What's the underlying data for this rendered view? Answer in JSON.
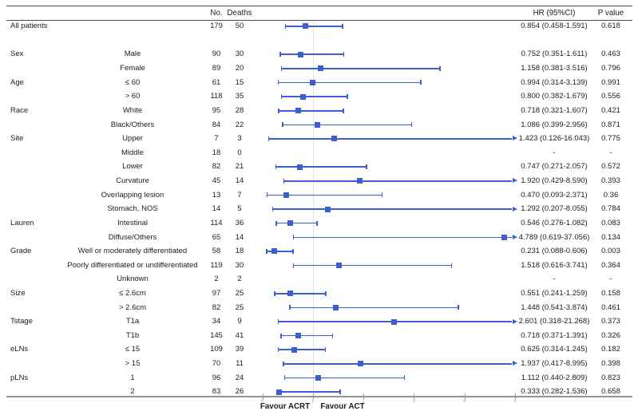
{
  "header": {
    "no": "No.",
    "deaths": "Deaths",
    "hr": "HR (95%CI)",
    "p": "P value"
  },
  "colors": {
    "marker_blue": "#3d5ed1",
    "axis_gray": "#949494",
    "tick_label_gray": "#9a9a9a",
    "refline_gray": "#e3e3e3",
    "text": "#1d1d1d"
  },
  "chart_data": {
    "type": "scatter",
    "subtype": "forest-plot",
    "xlim": [
      0,
      5.3
    ],
    "ticks": [
      0,
      1,
      2,
      3,
      4,
      5
    ],
    "refline_x": 1,
    "xlabel_left": "Favour ACRT",
    "xlabel_right": "Favour ACT",
    "grid": false,
    "rows": [
      {
        "category": "All patients",
        "subgroup": "",
        "no": "179",
        "deaths": "50",
        "hr": 0.854,
        "lo": 0.458,
        "hi": 1.591,
        "hr_text": "0.854 (0.458-1.591)",
        "p": "0.618",
        "arrow": false
      },
      {
        "blank": true
      },
      {
        "category": "Sex",
        "subgroup": "Male",
        "no": "90",
        "deaths": "30",
        "hr": 0.752,
        "lo": 0.351,
        "hi": 1.611,
        "hr_text": "0.752 (0.351-1.611)",
        "p": "0.463",
        "arrow": false
      },
      {
        "category": "",
        "subgroup": "Female",
        "no": "89",
        "deaths": "20",
        "hr": 1.158,
        "lo": 0.381,
        "hi": 3.516,
        "hr_text": "1.158 (0.381-3.516)",
        "p": "0.796",
        "arrow": false
      },
      {
        "category": "Age",
        "subgroup": "≤ 60",
        "no": "61",
        "deaths": "15",
        "hr": 0.994,
        "lo": 0.314,
        "hi": 3.139,
        "hr_text": "0.994 (0.314-3.139)",
        "p": "0.991",
        "arrow": false
      },
      {
        "category": "",
        "subgroup": "> 60",
        "no": "118",
        "deaths": "35",
        "hr": 0.8,
        "lo": 0.382,
        "hi": 1.679,
        "hr_text": "0.800 (0.382-1.679)",
        "p": "0.556",
        "arrow": false
      },
      {
        "category": "Race",
        "subgroup": "White",
        "no": "95",
        "deaths": "28",
        "hr": 0.718,
        "lo": 0.321,
        "hi": 1.607,
        "hr_text": "0.718 (0.321-1.607)",
        "p": "0.421",
        "arrow": false
      },
      {
        "category": "",
        "subgroup": "Black/Others",
        "no": "84",
        "deaths": "22",
        "hr": 1.086,
        "lo": 0.399,
        "hi": 2.956,
        "hr_text": "1.086 (0.399-2.956)",
        "p": "0.871",
        "arrow": false
      },
      {
        "category": "Site",
        "subgroup": "Upper",
        "no": "7",
        "deaths": "3",
        "hr": 1.423,
        "lo": 0.126,
        "hi": 16.043,
        "hr_text": "1.423 (0.126-16.043)",
        "p": "0.775",
        "arrow": true
      },
      {
        "category": "",
        "subgroup": "Middle",
        "no": "18",
        "deaths": "0",
        "hr": null,
        "lo": null,
        "hi": null,
        "hr_text": "-",
        "p": "-",
        "arrow": false
      },
      {
        "category": "",
        "subgroup": "Lower",
        "no": "82",
        "deaths": "21",
        "hr": 0.747,
        "lo": 0.271,
        "hi": 2.057,
        "hr_text": "0.747 (0.271-2.057)",
        "p": "0.572",
        "arrow": false
      },
      {
        "category": "",
        "subgroup": "Curvature",
        "no": "45",
        "deaths": "14",
        "hr": 1.92,
        "lo": 0.429,
        "hi": 8.59,
        "hr_text": "1.920 (0.429-8.590)",
        "p": "0.393",
        "arrow": true
      },
      {
        "category": "",
        "subgroup": "Overlapping lesion",
        "no": "13",
        "deaths": "7",
        "hr": 0.47,
        "lo": 0.093,
        "hi": 2.371,
        "hr_text": "0.470 (0.093-2.371)",
        "p": "0.36",
        "arrow": false
      },
      {
        "category": "",
        "subgroup": "Stomach, NOS",
        "no": "14",
        "deaths": "5",
        "hr": 1.292,
        "lo": 0.207,
        "hi": 8.055,
        "hr_text": "1.292 (0.207-8.055)",
        "p": "0.784",
        "arrow": true
      },
      {
        "category": "Lauren",
        "subgroup": "Intestinal",
        "no": "114",
        "deaths": "36",
        "hr": 0.546,
        "lo": 0.276,
        "hi": 1.082,
        "hr_text": "0.546 (0.276-1.082)",
        "p": "0.083",
        "arrow": false
      },
      {
        "category": "",
        "subgroup": "Diffuse/Others",
        "no": "65",
        "deaths": "14",
        "hr": 4.789,
        "lo": 0.619,
        "hi": 37.056,
        "hr_text": "4.789 (0.619-37.056)",
        "p": "0.134",
        "arrow": true
      },
      {
        "category": "Grade",
        "subgroup": "Well or moderately differentiated",
        "no": "58",
        "deaths": "18",
        "hr": 0.231,
        "lo": 0.088,
        "hi": 0.606,
        "hr_text": "0.231 (0.088-0.606)",
        "p": "0.003",
        "arrow": false
      },
      {
        "category": "",
        "subgroup": "Poorly differentiated or undifferentiated",
        "no": "119",
        "deaths": "30",
        "hr": 1.518,
        "lo": 0.616,
        "hi": 3.741,
        "hr_text": "1.518 (0.616-3.741)",
        "p": "0.364",
        "arrow": false
      },
      {
        "category": "",
        "subgroup": "Unknown",
        "no": "2",
        "deaths": "2",
        "hr": null,
        "lo": null,
        "hi": null,
        "hr_text": "-",
        "p": "-",
        "arrow": false
      },
      {
        "category": "Size",
        "subgroup": "≤ 2.6cm",
        "no": "97",
        "deaths": "25",
        "hr": 0.551,
        "lo": 0.241,
        "hi": 1.259,
        "hr_text": "0.551 (0.241-1.259)",
        "p": "0.158",
        "arrow": false
      },
      {
        "category": "",
        "subgroup": "> 2.6cm",
        "no": "82",
        "deaths": "25",
        "hr": 1.448,
        "lo": 0.541,
        "hi": 3.874,
        "hr_text": "1.448 (0.541-3.874)",
        "p": "0.461",
        "arrow": false
      },
      {
        "category": "Tstage",
        "subgroup": "T1a",
        "no": "34",
        "deaths": "9",
        "hr": 2.601,
        "lo": 0.318,
        "hi": 21.268,
        "hr_text": "2.601 (0.318-21.268)",
        "p": "0.373",
        "arrow": true
      },
      {
        "category": "",
        "subgroup": "T1b",
        "no": "145",
        "deaths": "41",
        "hr": 0.718,
        "lo": 0.371,
        "hi": 1.391,
        "hr_text": "0.718 (0.371-1.391)",
        "p": "0.326",
        "arrow": false
      },
      {
        "category": "eLNs",
        "subgroup": "≤ 15",
        "no": "109",
        "deaths": "39",
        "hr": 0.625,
        "lo": 0.314,
        "hi": 1.245,
        "hr_text": "0.625 (0.314-1.245)",
        "p": "0.182",
        "arrow": false
      },
      {
        "category": "",
        "subgroup": "> 15",
        "no": "70",
        "deaths": "11",
        "hr": 1.937,
        "lo": 0.417,
        "hi": 8.995,
        "hr_text": "1.937 (0.417-8.995)",
        "p": "0.398",
        "arrow": true
      },
      {
        "category": "pLNs",
        "subgroup": "1",
        "no": "96",
        "deaths": "24",
        "hr": 1.112,
        "lo": 0.44,
        "hi": 2.809,
        "hr_text": "1.112 (0.440-2.809)",
        "p": "0.823",
        "arrow": false
      },
      {
        "category": "",
        "subgroup": "2",
        "no": "83",
        "deaths": "26",
        "hr": 0.333,
        "lo": 0.282,
        "hi": 1.536,
        "hr_text": "0.333 (0.282-1.536)",
        "p": "0.658",
        "arrow": false
      }
    ]
  }
}
